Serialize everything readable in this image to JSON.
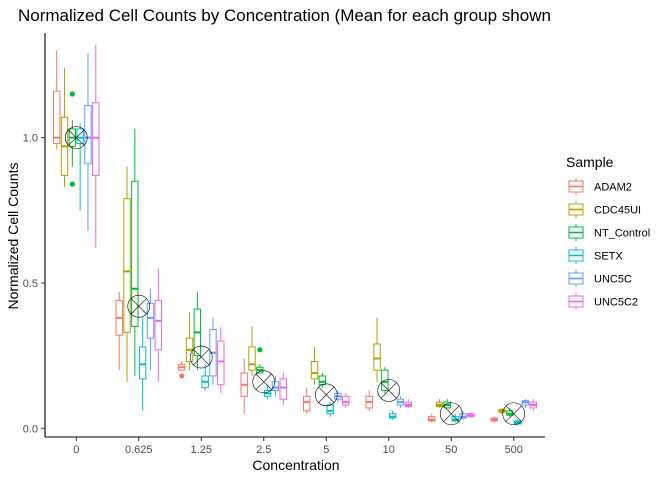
{
  "chart_data": {
    "type": "boxplot",
    "title": "Normalized Cell Counts by Concentration (Mean for each group shown",
    "xlabel": "Concentration",
    "ylabel": "Normalized Cell Counts",
    "ylim": [
      -0.03,
      1.36
    ],
    "yticks": [
      0.0,
      0.5,
      1.0
    ],
    "ytick_labels": [
      "0.0",
      "0.5",
      "1.0"
    ],
    "categories": [
      "0",
      "0.625",
      "1.25",
      "2.5",
      "5",
      "10",
      "50",
      "500"
    ],
    "grid": false,
    "legend_position": "right",
    "legend_title": "Sample",
    "mean_marker": "circle-x",
    "series": [
      {
        "name": "ADAM2",
        "color": "#F8766D",
        "boxes": [
          {
            "min": 0.96,
            "q1": 0.98,
            "median": 1.0,
            "q3": 1.16,
            "max": 1.3,
            "outliers": []
          },
          {
            "min": 0.2,
            "q1": 0.32,
            "median": 0.38,
            "q3": 0.44,
            "max": 0.47,
            "outliers": []
          },
          {
            "min": 0.2,
            "q1": 0.2,
            "median": 0.21,
            "q3": 0.22,
            "max": 0.23,
            "outliers": [
              0.18
            ]
          },
          {
            "min": 0.05,
            "q1": 0.11,
            "median": 0.15,
            "q3": 0.19,
            "max": 0.24,
            "outliers": []
          },
          {
            "min": 0.05,
            "q1": 0.06,
            "median": 0.09,
            "q3": 0.11,
            "max": 0.14,
            "outliers": []
          },
          {
            "min": 0.06,
            "q1": 0.07,
            "median": 0.09,
            "q3": 0.11,
            "max": 0.13,
            "outliers": []
          },
          {
            "min": 0.02,
            "q1": 0.025,
            "median": 0.03,
            "q3": 0.04,
            "max": 0.05,
            "outliers": []
          },
          {
            "min": 0.02,
            "q1": 0.025,
            "median": 0.03,
            "q3": 0.035,
            "max": 0.04,
            "outliers": []
          }
        ]
      },
      {
        "name": "CDC45UI",
        "color": "#B79F00",
        "boxes": [
          {
            "min": 0.83,
            "q1": 0.87,
            "median": 0.97,
            "q3": 1.07,
            "max": 1.24,
            "outliers": []
          },
          {
            "min": 0.16,
            "q1": 0.33,
            "median": 0.54,
            "q3": 0.79,
            "max": 0.9,
            "outliers": []
          },
          {
            "min": 0.2,
            "q1": 0.23,
            "median": 0.27,
            "q3": 0.31,
            "max": 0.4,
            "outliers": []
          },
          {
            "min": 0.18,
            "q1": 0.2,
            "median": 0.22,
            "q3": 0.28,
            "max": 0.35,
            "outliers": []
          },
          {
            "min": 0.15,
            "q1": 0.17,
            "median": 0.19,
            "q3": 0.23,
            "max": 0.28,
            "outliers": []
          },
          {
            "min": 0.16,
            "q1": 0.2,
            "median": 0.24,
            "q3": 0.29,
            "max": 0.38,
            "outliers": []
          },
          {
            "min": 0.07,
            "q1": 0.075,
            "median": 0.08,
            "q3": 0.09,
            "max": 0.1,
            "outliers": []
          },
          {
            "min": 0.05,
            "q1": 0.055,
            "median": 0.06,
            "q3": 0.065,
            "max": 0.07,
            "outliers": []
          }
        ]
      },
      {
        "name": "NT_Control",
        "color": "#00BA38",
        "boxes": [
          {
            "min": 0.9,
            "q1": 0.97,
            "median": 1.0,
            "q3": 1.03,
            "max": 1.06,
            "outliers": [
              1.15,
              0.84
            ]
          },
          {
            "min": 0.18,
            "q1": 0.35,
            "median": 0.48,
            "q3": 0.85,
            "max": 1.03,
            "outliers": []
          },
          {
            "min": 0.2,
            "q1": 0.25,
            "median": 0.33,
            "q3": 0.41,
            "max": 0.47,
            "outliers": []
          },
          {
            "min": 0.19,
            "q1": 0.19,
            "median": 0.2,
            "q3": 0.21,
            "max": 0.22,
            "outliers": [
              0.27
            ]
          },
          {
            "min": 0.14,
            "q1": 0.15,
            "median": 0.16,
            "q3": 0.18,
            "max": 0.19,
            "outliers": []
          },
          {
            "min": 0.12,
            "q1": 0.13,
            "median": 0.16,
            "q3": 0.2,
            "max": 0.21,
            "outliers": []
          },
          {
            "min": 0.07,
            "q1": 0.07,
            "median": 0.08,
            "q3": 0.09,
            "max": 0.1,
            "outliers": []
          },
          {
            "min": 0.04,
            "q1": 0.045,
            "median": 0.05,
            "q3": 0.06,
            "max": 0.07,
            "outliers": []
          }
        ]
      },
      {
        "name": "SETX",
        "color": "#00BFC4",
        "boxes": [
          {
            "min": 0.75,
            "q1": 0.98,
            "median": 1.0,
            "q3": 1.03,
            "max": 1.05,
            "outliers": []
          },
          {
            "min": 0.06,
            "q1": 0.17,
            "median": 0.22,
            "q3": 0.28,
            "max": 0.38,
            "outliers": []
          },
          {
            "min": 0.13,
            "q1": 0.14,
            "median": 0.16,
            "q3": 0.18,
            "max": 0.22,
            "outliers": []
          },
          {
            "min": 0.1,
            "q1": 0.11,
            "median": 0.12,
            "q3": 0.13,
            "max": 0.15,
            "outliers": []
          },
          {
            "min": 0.04,
            "q1": 0.05,
            "median": 0.06,
            "q3": 0.08,
            "max": 0.09,
            "outliers": []
          },
          {
            "min": 0.03,
            "q1": 0.035,
            "median": 0.04,
            "q3": 0.05,
            "max": 0.06,
            "outliers": []
          },
          {
            "min": 0.02,
            "q1": 0.025,
            "median": 0.03,
            "q3": 0.04,
            "max": 0.05,
            "outliers": []
          },
          {
            "min": 0.01,
            "q1": 0.015,
            "median": 0.02,
            "q3": 0.025,
            "max": 0.03,
            "outliers": []
          }
        ]
      },
      {
        "name": "UNC5C",
        "color": "#619CFF",
        "boxes": [
          {
            "min": 0.68,
            "q1": 0.91,
            "median": 1.0,
            "q3": 1.11,
            "max": 1.29,
            "outliers": []
          },
          {
            "min": 0.2,
            "q1": 0.31,
            "median": 0.38,
            "q3": 0.43,
            "max": 0.48,
            "outliers": []
          },
          {
            "min": 0.15,
            "q1": 0.18,
            "median": 0.26,
            "q3": 0.34,
            "max": 0.38,
            "outliers": []
          },
          {
            "min": 0.11,
            "q1": 0.13,
            "median": 0.14,
            "q3": 0.16,
            "max": 0.18,
            "outliers": []
          },
          {
            "min": 0.09,
            "q1": 0.1,
            "median": 0.11,
            "q3": 0.12,
            "max": 0.13,
            "outliers": []
          },
          {
            "min": 0.07,
            "q1": 0.08,
            "median": 0.09,
            "q3": 0.1,
            "max": 0.11,
            "outliers": []
          },
          {
            "min": 0.03,
            "q1": 0.035,
            "median": 0.04,
            "q3": 0.05,
            "max": 0.06,
            "outliers": []
          },
          {
            "min": 0.07,
            "q1": 0.08,
            "median": 0.09,
            "q3": 0.095,
            "max": 0.1,
            "outliers": []
          }
        ]
      },
      {
        "name": "UNC5C2",
        "color": "#F564E3",
        "boxes": [
          {
            "min": 0.62,
            "q1": 0.87,
            "median": 1.0,
            "q3": 1.12,
            "max": 1.32,
            "outliers": []
          },
          {
            "min": 0.16,
            "q1": 0.27,
            "median": 0.37,
            "q3": 0.44,
            "max": 0.55,
            "outliers": []
          },
          {
            "min": 0.12,
            "q1": 0.15,
            "median": 0.23,
            "q3": 0.3,
            "max": 0.35,
            "outliers": []
          },
          {
            "min": 0.08,
            "q1": 0.1,
            "median": 0.14,
            "q3": 0.17,
            "max": 0.19,
            "outliers": []
          },
          {
            "min": 0.07,
            "q1": 0.08,
            "median": 0.09,
            "q3": 0.11,
            "max": 0.12,
            "outliers": []
          },
          {
            "min": 0.07,
            "q1": 0.075,
            "median": 0.08,
            "q3": 0.09,
            "max": 0.1,
            "outliers": []
          },
          {
            "min": 0.035,
            "q1": 0.04,
            "median": 0.045,
            "q3": 0.05,
            "max": 0.055,
            "outliers": []
          },
          {
            "min": 0.06,
            "q1": 0.07,
            "median": 0.08,
            "q3": 0.09,
            "max": 0.1,
            "outliers": []
          }
        ]
      }
    ],
    "group_means": [
      1.0,
      0.42,
      0.245,
      0.16,
      0.115,
      0.13,
      0.05,
      0.05
    ]
  }
}
